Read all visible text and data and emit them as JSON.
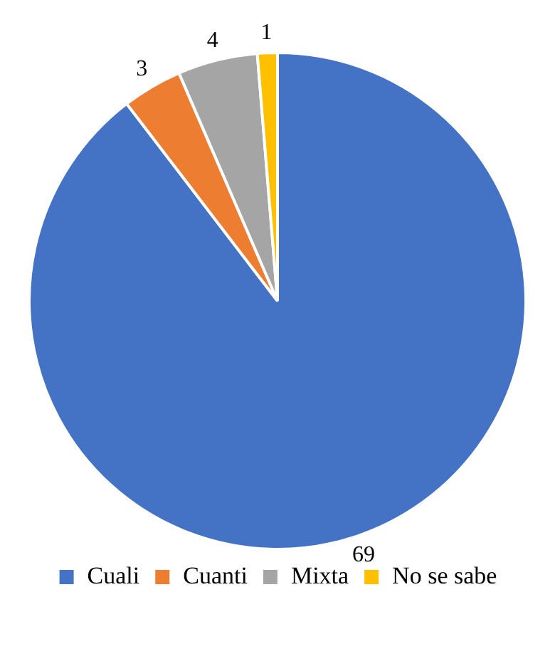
{
  "chart_data": {
    "type": "pie",
    "categories": [
      "Cuali",
      "Cuanti",
      "Mixta",
      "No se sabe"
    ],
    "values": [
      69,
      3,
      4,
      1
    ],
    "colors": [
      "#4472c4",
      "#ed7d31",
      "#a5a5a5",
      "#ffc000"
    ],
    "data_labels": true,
    "legend": "bottom"
  }
}
